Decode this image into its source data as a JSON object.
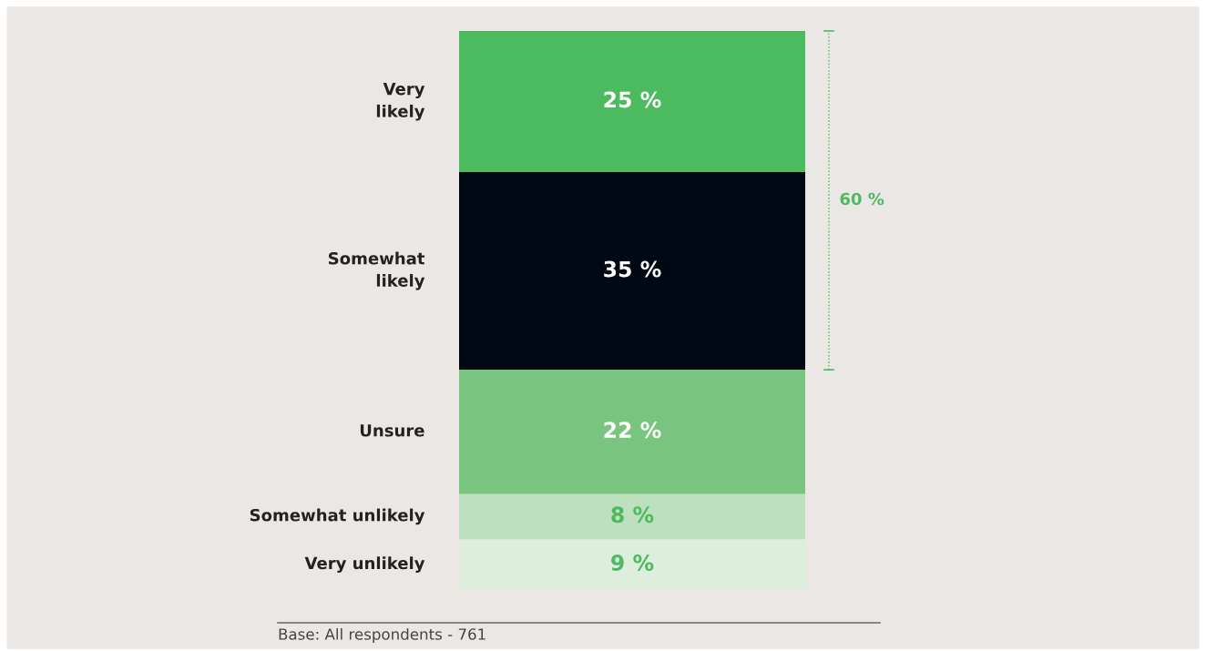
{
  "chart_data": {
    "type": "bar",
    "stacked": true,
    "categories": [
      null
    ],
    "series": [
      {
        "name": "Very unlikely",
        "color": "#ddeedd",
        "values": [
          9
        ],
        "value_labels": [
          "9 %"
        ]
      },
      {
        "name": "Somewhat unlikely",
        "color": "#bde0bf",
        "values": [
          8
        ],
        "value_labels": [
          "8 %"
        ]
      },
      {
        "name": "Unsure",
        "color": "#79c47f",
        "values": [
          22
        ],
        "value_labels": [
          "22 %"
        ]
      },
      {
        "name": "Somewhat likely",
        "color": "#000814",
        "values": [
          35
        ],
        "value_labels": [
          "35 %"
        ]
      },
      {
        "name": "Very likely",
        "color": "#4cba5f",
        "values": [
          25
        ],
        "value_labels": [
          "25 %"
        ]
      }
    ],
    "annotations": [
      "60 %",
      "Base: All respondents - 761"
    ],
    "legend": false
  }
}
